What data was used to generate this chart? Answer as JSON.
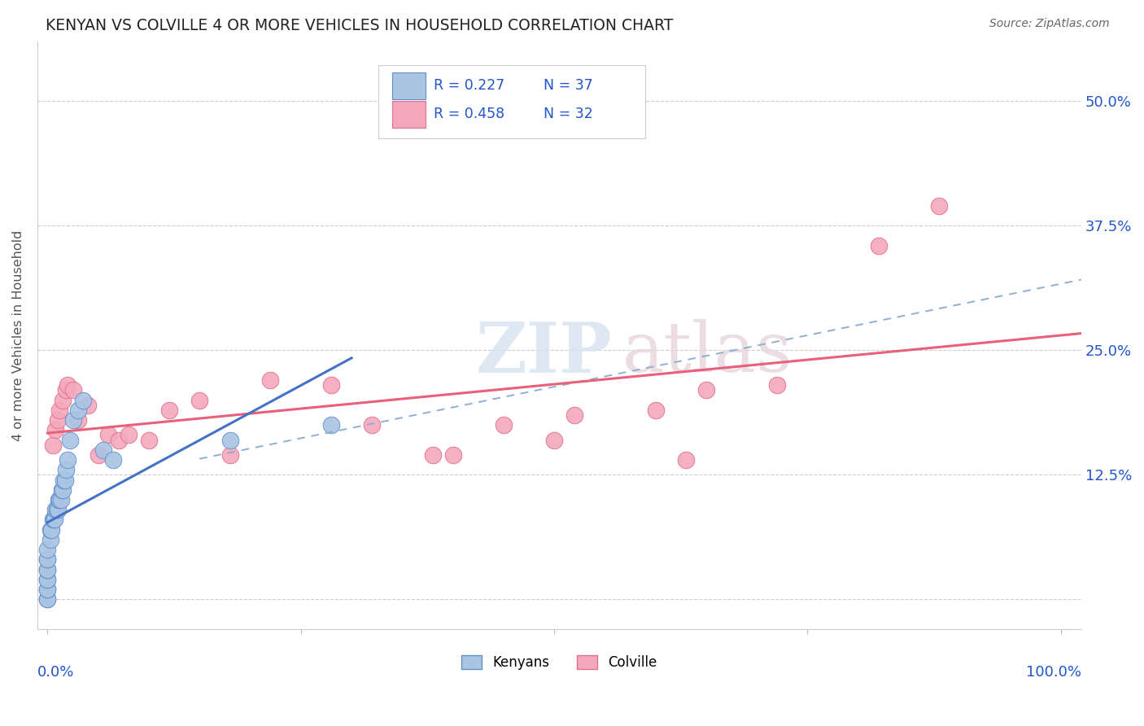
{
  "title": "KENYAN VS COLVILLE 4 OR MORE VEHICLES IN HOUSEHOLD CORRELATION CHART",
  "source": "Source: ZipAtlas.com",
  "ylabel": "4 or more Vehicles in Household",
  "ytick_labels": [
    "",
    "12.5%",
    "25.0%",
    "37.5%",
    "50.0%"
  ],
  "ytick_values": [
    0.0,
    0.125,
    0.25,
    0.375,
    0.5
  ],
  "xtick_values": [
    0.0,
    0.25,
    0.5,
    0.75,
    1.0
  ],
  "xlim": [
    -0.01,
    1.02
  ],
  "ylim": [
    -0.03,
    0.56
  ],
  "kenyan_R": 0.227,
  "kenyan_N": 37,
  "colville_R": 0.458,
  "colville_N": 32,
  "kenyan_color": "#aac4e4",
  "colville_color": "#f4a8bc",
  "kenyan_edge_color": "#6090c8",
  "colville_edge_color": "#e07090",
  "kenyan_line_color": "#4472c4",
  "colville_line_color": "#e8607a",
  "dashed_line_color": "#90aed0",
  "background_color": "#ffffff",
  "legend_color": "#2255cc",
  "kenyan_x": [
    0.0,
    0.0,
    0.0,
    0.0,
    0.0,
    0.0,
    0.0,
    0.0,
    0.0,
    0.0,
    0.0,
    0.003,
    0.003,
    0.004,
    0.005,
    0.006,
    0.007,
    0.008,
    0.009,
    0.01,
    0.011,
    0.012,
    0.013,
    0.014,
    0.015,
    0.016,
    0.017,
    0.018,
    0.02,
    0.022,
    0.025,
    0.03,
    0.035,
    0.055,
    0.065,
    0.18,
    0.28
  ],
  "kenyan_y": [
    0.0,
    0.0,
    0.01,
    0.01,
    0.02,
    0.02,
    0.03,
    0.03,
    0.04,
    0.04,
    0.05,
    0.06,
    0.07,
    0.07,
    0.08,
    0.08,
    0.08,
    0.09,
    0.09,
    0.09,
    0.1,
    0.1,
    0.1,
    0.11,
    0.11,
    0.12,
    0.12,
    0.13,
    0.14,
    0.16,
    0.18,
    0.19,
    0.2,
    0.15,
    0.14,
    0.16,
    0.175
  ],
  "colville_x": [
    0.005,
    0.008,
    0.01,
    0.012,
    0.015,
    0.018,
    0.02,
    0.025,
    0.03,
    0.04,
    0.05,
    0.06,
    0.07,
    0.08,
    0.1,
    0.12,
    0.15,
    0.18,
    0.22,
    0.28,
    0.32,
    0.38,
    0.4,
    0.45,
    0.5,
    0.52,
    0.6,
    0.63,
    0.65,
    0.72,
    0.82,
    0.88
  ],
  "colville_y": [
    0.155,
    0.17,
    0.18,
    0.19,
    0.2,
    0.21,
    0.215,
    0.21,
    0.18,
    0.195,
    0.145,
    0.165,
    0.16,
    0.165,
    0.16,
    0.19,
    0.2,
    0.145,
    0.22,
    0.215,
    0.175,
    0.145,
    0.145,
    0.175,
    0.16,
    0.185,
    0.19,
    0.14,
    0.21,
    0.215,
    0.355,
    0.395
  ],
  "watermark_zip": "ZIP",
  "watermark_atlas": "atlas"
}
